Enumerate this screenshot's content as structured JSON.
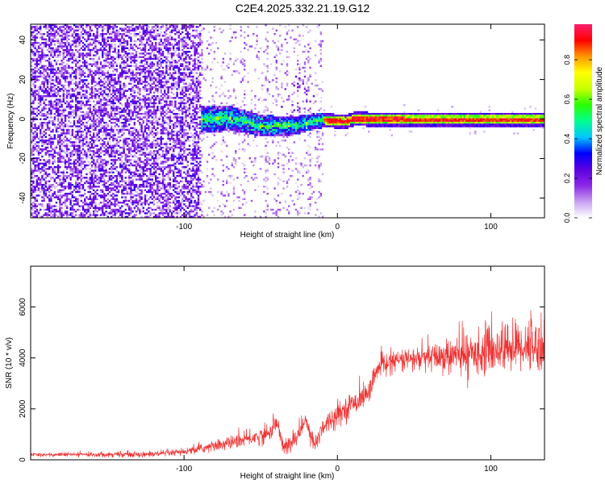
{
  "title": "C2E4.2025.332.21.19.G12",
  "chart_data": [
    {
      "type": "heatmap",
      "xlabel": "Height of straight line (km)",
      "ylabel": "Frequency (Hz)",
      "xlim": [
        -200,
        135
      ],
      "ylim": [
        -50,
        48
      ],
      "x_ticks": [
        {
          "value": -100,
          "label": "-100"
        },
        {
          "value": 0,
          "label": "0"
        },
        {
          "value": 100,
          "label": "100"
        }
      ],
      "y_ticks": [
        {
          "value": -40,
          "label": "-40"
        },
        {
          "value": -20,
          "label": "-20"
        },
        {
          "value": 0,
          "label": "0"
        },
        {
          "value": 20,
          "label": "20"
        },
        {
          "value": 40,
          "label": "40"
        }
      ],
      "colorbar": {
        "label": "Normalized spectral amplitude",
        "range": [
          0,
          0.98
        ],
        "ticks": [
          {
            "value": 0.0,
            "label": "0.0"
          },
          {
            "value": 0.2,
            "label": "0.2"
          },
          {
            "value": 0.4,
            "label": "0.4"
          },
          {
            "value": 0.6,
            "label": "0.6"
          },
          {
            "value": 0.8,
            "label": "0.8"
          }
        ],
        "stops": [
          "#ffffff",
          "#c8a0f0",
          "#8c28e6",
          "#5a00e0",
          "#0000ff",
          "#00c8ff",
          "#00ff90",
          "#28ff00",
          "#c8ff00",
          "#ffff00",
          "#ff9600",
          "#ff0000",
          "#ff1e6e"
        ]
      },
      "ridge": [
        {
          "x": -90,
          "freq": 0.0
        },
        {
          "x": -70,
          "freq": 0.8
        },
        {
          "x": -50,
          "freq": -3.0
        },
        {
          "x": -30,
          "freq": -3.0
        },
        {
          "x": -10,
          "freq": 0.0
        },
        {
          "x": 5,
          "freq": -1.0
        },
        {
          "x": 10,
          "freq": 0.5
        },
        {
          "x": 50,
          "freq": 0.0
        },
        {
          "x": 100,
          "freq": 0.0
        },
        {
          "x": 135,
          "freq": 0.0
        }
      ],
      "regions": [
        {
          "from": -200,
          "to": -90,
          "description_level": 0.25
        },
        {
          "from": -90,
          "to": -10,
          "description_level": 0.1
        },
        {
          "from": -10,
          "to": 135,
          "description_level": 0.0
        }
      ]
    },
    {
      "type": "line",
      "xlabel": "Height of straight line (km)",
      "ylabel": "SNR (10 * v/v)",
      "xlim": [
        -200,
        135
      ],
      "ylim": [
        0,
        7600
      ],
      "color": "#ee3333",
      "x_ticks": [
        {
          "value": -100,
          "label": "-100"
        },
        {
          "value": 0,
          "label": "0"
        },
        {
          "value": 100,
          "label": "100"
        }
      ],
      "y_ticks": [
        {
          "value": 0,
          "label": "0"
        },
        {
          "value": 2000,
          "label": "2000"
        },
        {
          "value": 4000,
          "label": "4000"
        },
        {
          "value": 6000,
          "label": "6000"
        }
      ],
      "trend": [
        {
          "x": -200,
          "y": 200
        },
        {
          "x": -120,
          "y": 220
        },
        {
          "x": -100,
          "y": 300
        },
        {
          "x": -80,
          "y": 550
        },
        {
          "x": -60,
          "y": 800
        },
        {
          "x": -45,
          "y": 1000
        },
        {
          "x": -40,
          "y": 1500
        },
        {
          "x": -35,
          "y": 500
        },
        {
          "x": -30,
          "y": 600
        },
        {
          "x": -20,
          "y": 1600
        },
        {
          "x": -15,
          "y": 500
        },
        {
          "x": -10,
          "y": 1300
        },
        {
          "x": 0,
          "y": 1800
        },
        {
          "x": 10,
          "y": 2200
        },
        {
          "x": 20,
          "y": 2600
        },
        {
          "x": 25,
          "y": 3400
        },
        {
          "x": 30,
          "y": 3800
        },
        {
          "x": 40,
          "y": 3900
        },
        {
          "x": 60,
          "y": 4000
        },
        {
          "x": 80,
          "y": 4100
        },
        {
          "x": 100,
          "y": 4300
        },
        {
          "x": 120,
          "y": 4500
        },
        {
          "x": 135,
          "y": 4500
        }
      ],
      "noise": [
        {
          "x": -200,
          "amp": 60
        },
        {
          "x": -100,
          "amp": 120
        },
        {
          "x": -50,
          "amp": 300
        },
        {
          "x": 0,
          "amp": 400
        },
        {
          "x": 40,
          "amp": 350
        },
        {
          "x": 70,
          "amp": 600
        },
        {
          "x": 110,
          "amp": 900
        },
        {
          "x": 135,
          "amp": 1000
        }
      ]
    }
  ]
}
